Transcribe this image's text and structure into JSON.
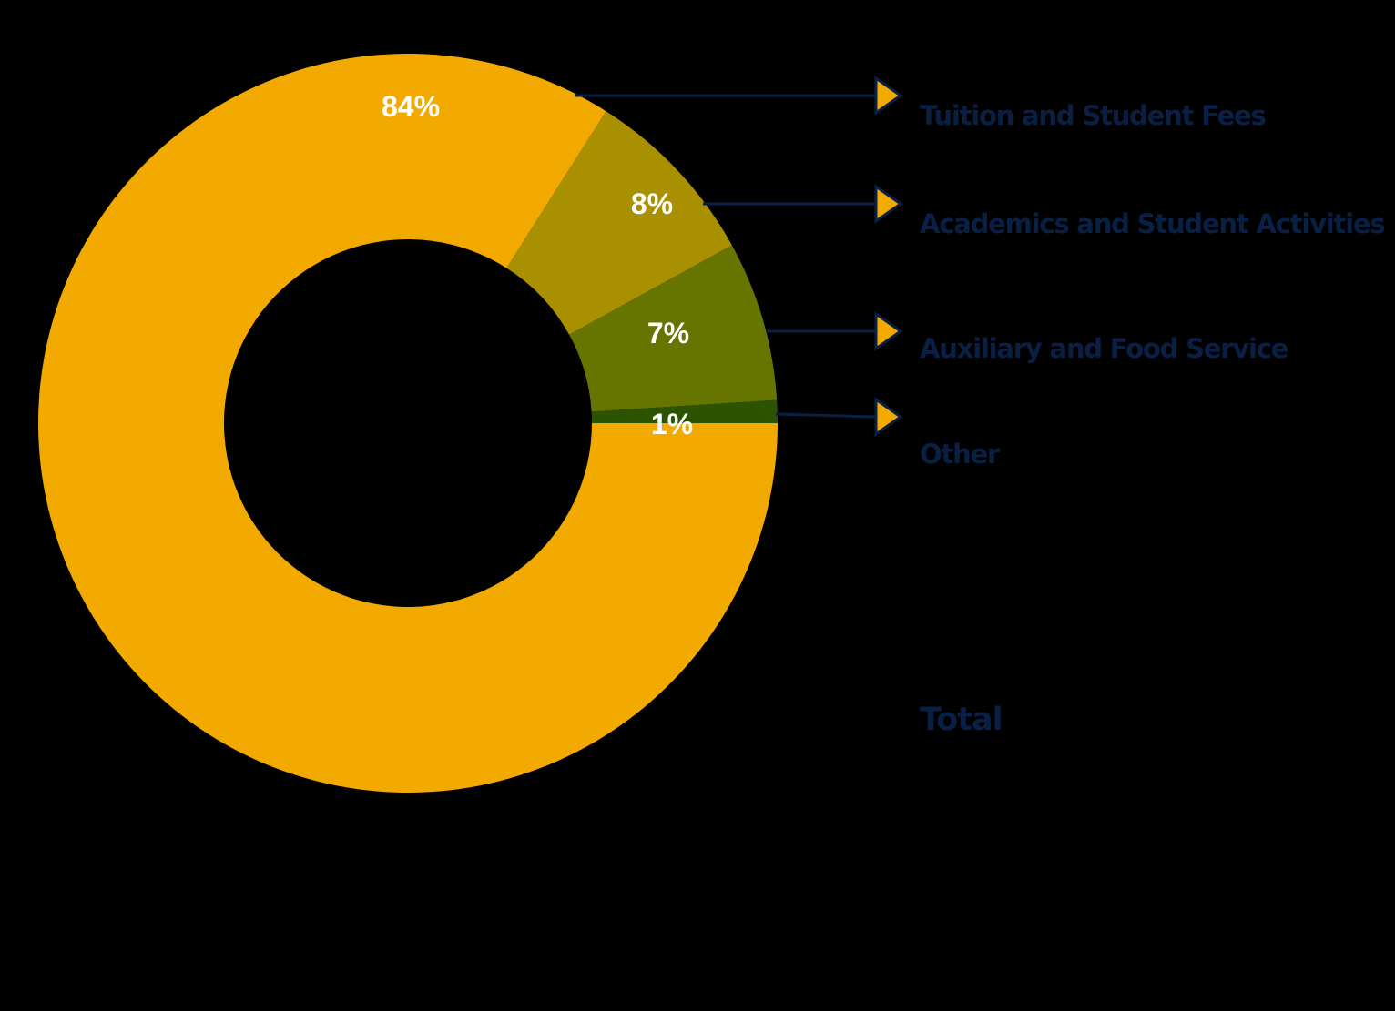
{
  "colors": {
    "background": "#000000",
    "text": "#0a1f44",
    "pointer": "#f2a900",
    "pointer_outline": "#0a1f44"
  },
  "chart_data": {
    "type": "pie",
    "style": "donut",
    "slices": [
      {
        "label": "Tuition and Student Fees",
        "value": 84,
        "display": "84%",
        "color": "#f2a900"
      },
      {
        "label": "Academics and Student Activities",
        "value": 8,
        "display": "8%",
        "color": "#a89000"
      },
      {
        "label": "Auxiliary and Food Service",
        "value": 7,
        "display": "7%",
        "color": "#667500"
      },
      {
        "label": "Other",
        "value": 1,
        "display": "1%",
        "color": "#2c5400"
      }
    ],
    "total_label": "Total",
    "legend": "right"
  }
}
